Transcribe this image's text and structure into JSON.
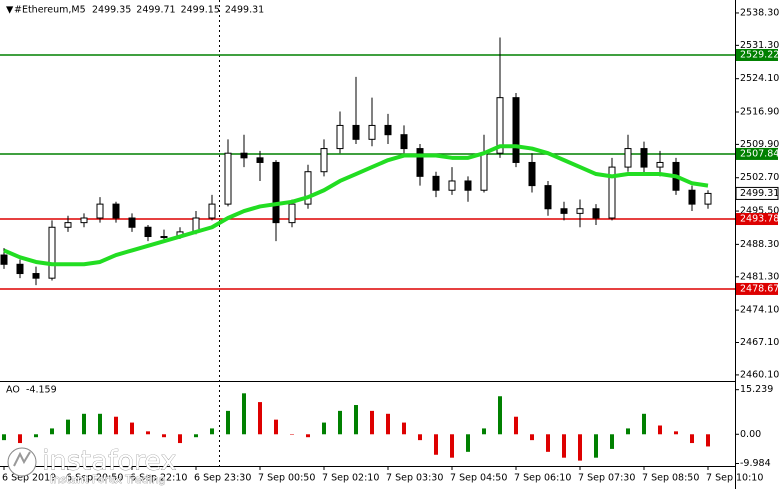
{
  "chart_data": [
    {
      "type": "candlestick",
      "title": "#Ethereum,M5",
      "header_values": [
        2499.35,
        2499.71,
        2499.15,
        2499.31
      ],
      "categories": [
        "6 Sep 2019",
        null,
        null,
        null,
        "6 Sep 20:50",
        null,
        null,
        null,
        "6 Sep 22:10",
        null,
        null,
        null,
        "6 Sep 23:30",
        null,
        null,
        null,
        "7 Sep 00:50",
        null,
        null,
        null,
        "7 Sep 02:10",
        null,
        null,
        null,
        "7 Sep 03:30",
        null,
        null,
        null,
        "7 Sep 04:50",
        null,
        null,
        null,
        "7 Sep 06:10",
        null,
        null,
        null,
        "7 Sep 07:30",
        null,
        null,
        null,
        "7 Sep 08:50",
        null,
        null,
        null,
        "7 Sep 10:10"
      ],
      "open": [
        2486,
        2484,
        2482,
        2481,
        2492,
        2493,
        2494,
        2497,
        2494,
        2492,
        2490,
        2490,
        2491,
        2494,
        2497,
        2508,
        2507,
        2506,
        2493,
        2497,
        2504,
        2509,
        2514,
        2511,
        2514,
        2512,
        2509,
        2503,
        2500,
        2502,
        2500,
        2508,
        2520,
        2506,
        2501,
        2496,
        2495,
        2496,
        2494,
        2505,
        2509,
        2505,
        2506,
        2500,
        2497
      ],
      "high": [
        2487.5,
        2485,
        2483.5,
        2493.5,
        2494.5,
        2495,
        2498.5,
        2497.5,
        2495,
        2492.5,
        2491.5,
        2492,
        2495.5,
        2499,
        2511,
        2512,
        2508.5,
        2506.5,
        2498,
        2505.5,
        2511,
        2517,
        2524.5,
        2520,
        2516.5,
        2514,
        2510,
        2504,
        2505,
        2503,
        2512,
        2533,
        2521,
        2508,
        2502,
        2497.5,
        2498,
        2497,
        2507,
        2512,
        2510.5,
        2508.5,
        2507,
        2501,
        2500
      ],
      "low": [
        2483,
        2481,
        2479.5,
        2480.5,
        2491,
        2492,
        2493,
        2493,
        2491,
        2489,
        2489,
        2489.5,
        2490.5,
        2493.5,
        2496.5,
        2505,
        2502,
        2489,
        2492,
        2496,
        2503,
        2508,
        2510,
        2509.5,
        2510,
        2508,
        2501,
        2498.5,
        2499,
        2497.5,
        2499.5,
        2507,
        2505,
        2499.5,
        2494.5,
        2493.5,
        2492,
        2492.5,
        2493.5,
        2504,
        2503.5,
        2503,
        2499,
        2495.5,
        2496
      ],
      "close": [
        2484,
        2482,
        2481,
        2492,
        2493,
        2494,
        2497,
        2494,
        2492,
        2490,
        2490,
        2491,
        2494,
        2497,
        2508,
        2507,
        2506,
        2493,
        2497,
        2504,
        2509,
        2514,
        2511,
        2514,
        2512,
        2509,
        2503,
        2500,
        2502,
        2500,
        2508,
        2520,
        2506,
        2501,
        2496,
        2495,
        2496,
        2494,
        2505,
        2509,
        2505,
        2506,
        2500,
        2497,
        2499.31
      ],
      "candle_color": "#000000",
      "up_fill": "#ffffff",
      "down_fill": "#000000",
      "ma": {
        "color": "#22dd22",
        "values": [
          2487,
          2485.5,
          2484.5,
          2484,
          2484,
          2484,
          2484.5,
          2486,
          2487,
          2488,
          2489,
          2490,
          2491,
          2492,
          2494,
          2495.5,
          2496.5,
          2497,
          2497.5,
          2498.5,
          2500,
          2502,
          2503.5,
          2505,
          2506.5,
          2507.5,
          2507.5,
          2507.5,
          2507,
          2507,
          2508,
          2509.5,
          2509.5,
          2509,
          2508,
          2506.5,
          2505,
          2503.5,
          2503,
          2503.5,
          2503.5,
          2503.5,
          2503,
          2501.5,
          2501
        ]
      },
      "levels": [
        {
          "value": 2529.22,
          "color": "#008000"
        },
        {
          "value": 2507.84,
          "color": "#008000"
        },
        {
          "value": 2493.78,
          "color": "#dd0000"
        },
        {
          "value": 2478.67,
          "color": "#dd0000"
        }
      ],
      "ylim": [
        2459,
        2541.1
      ],
      "yticks": [
        {
          "value": 2538.3,
          "label": "2538.30"
        },
        {
          "value": 2531.3,
          "label": "2531.30"
        },
        {
          "value": 2524.1,
          "label": "2524.10"
        },
        {
          "value": 2516.9,
          "label": "2516.90"
        },
        {
          "value": 2509.9,
          "label": "2509.90"
        },
        {
          "value": 2502.7,
          "label": "2502.70"
        },
        {
          "value": 2495.5,
          "label": "2495.50"
        },
        {
          "value": 2488.3,
          "label": "2488.30"
        },
        {
          "value": 2481.3,
          "label": "2481.30"
        },
        {
          "value": 2474.1,
          "label": "2474.10"
        },
        {
          "value": 2467.1,
          "label": "2467.10"
        },
        {
          "value": 2460.1,
          "label": "2460.10"
        }
      ]
    },
    {
      "type": "bar",
      "title": "AO",
      "values": [
        -2,
        -3,
        -1,
        2,
        5,
        7,
        7,
        6,
        4,
        1,
        -1,
        -3,
        -1,
        2,
        8,
        14,
        11,
        5,
        0,
        -1,
        4,
        8,
        10,
        8,
        7,
        4,
        -2,
        -7,
        -8,
        -6,
        2,
        13,
        6,
        -2,
        -6,
        -8,
        -9,
        -8,
        -5,
        2,
        7,
        3,
        1,
        -3,
        -4.159
      ],
      "up_color": "#008000",
      "down_color": "#dd0000",
      "ylim": [
        -10.5,
        16.5
      ],
      "yticks": [
        15.239,
        {
          "value": 0,
          "label": "0.00"
        },
        -9.984
      ]
    }
  ],
  "watermark": {
    "brand": "instaforex",
    "tagline": "Instant Forex Trading"
  }
}
